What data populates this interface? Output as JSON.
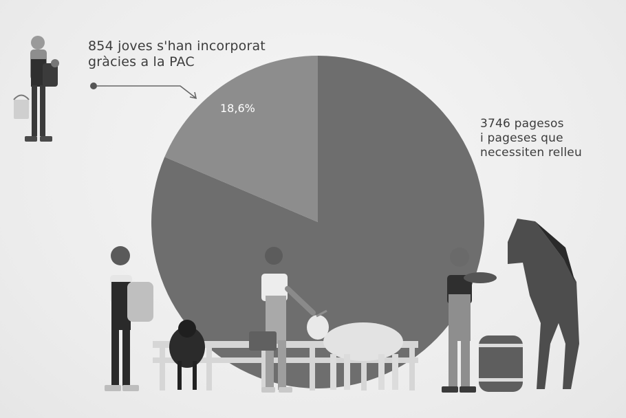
{
  "chart_data": {
    "type": "pie",
    "slices": [
      {
        "label": "854 joves s'han incorporat gràcies a la PAC",
        "value": 18.6,
        "value_label": "18,6%",
        "color": "#8d8d8d"
      },
      {
        "label": "3746 pagesos i pageses que necessiten relleu",
        "value": 81.4,
        "color": "#6e6e6e"
      }
    ],
    "annotations": {
      "young_line1": "854 joves s'han incorporat",
      "young_line2": "gràcies a la PAC",
      "farmers_line1": "3746 pagesos",
      "farmers_line2": "i pageses que",
      "farmers_line3": "necessiten relleu"
    }
  },
  "colors": {
    "background": "#efefef",
    "slice_major": "#6e6e6e",
    "slice_minor": "#8d8d8d",
    "figures_dark": "#2e2e2e",
    "figures_mid": "#8a8a8a",
    "figures_light": "#cfcfcf"
  },
  "icons": [
    "farmer-with-bucket-icon",
    "farmer-woman-with-sack-icon",
    "sheep-icon",
    "farmer-with-basket-icon",
    "goat-icon",
    "farmer-with-tray-icon",
    "barrel-icon",
    "horse-icon",
    "fence-icon"
  ]
}
